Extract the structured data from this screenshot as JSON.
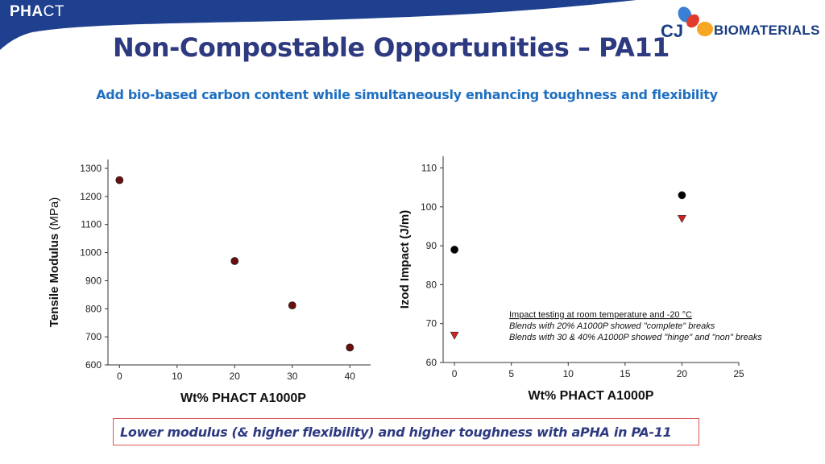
{
  "header": {
    "brand_bold": "PHA",
    "brand_thin": "CT",
    "title": "Non-Compostable Opportunities – PA11",
    "subtitle": "Add bio-based carbon content while simultaneously enhancing toughness and flexibility",
    "logo_prefix": "CJ",
    "logo_text": "BIOMATERIALS"
  },
  "colors": {
    "banner": "#1f3f8f",
    "title": "#2e3a80",
    "subtitle": "#1f6fc1",
    "marker_dark_red": "#6b0e0e",
    "marker_black": "#000000",
    "marker_red": "#d42020",
    "callout_border": "#e05555"
  },
  "chart_data": [
    {
      "type": "scatter",
      "xlabel": "Wt% PHACT A1000P",
      "ylabel_bold": "Tensile Modulus",
      "ylabel_unit": "(MPa)",
      "xticks": [
        0,
        10,
        20,
        30,
        40
      ],
      "yticks": [
        600,
        700,
        800,
        900,
        1000,
        1100,
        1200,
        1300
      ],
      "xlim": [
        -2,
        45
      ],
      "ylim": [
        600,
        1300
      ],
      "grid": false,
      "series": [
        {
          "marker": "circle",
          "color": "#6b0e0e",
          "points": [
            [
              0,
              1258
            ],
            [
              20,
              970
            ],
            [
              30,
              812
            ],
            [
              40,
              662
            ]
          ]
        }
      ]
    },
    {
      "type": "scatter",
      "xlabel": "Wt% PHACT A1000P",
      "ylabel": "Izod Impact (J/m)",
      "xticks": [
        0,
        5,
        10,
        15,
        20,
        25
      ],
      "yticks": [
        60,
        70,
        80,
        90,
        100,
        110
      ],
      "xlim": [
        -1,
        25
      ],
      "ylim": [
        60,
        113
      ],
      "grid": false,
      "series": [
        {
          "marker": "circle",
          "color": "#000000",
          "points": [
            [
              0,
              89
            ],
            [
              20,
              103
            ]
          ]
        },
        {
          "marker": "triangle-down",
          "color": "#d42020",
          "points": [
            [
              0,
              67
            ],
            [
              20,
              97
            ]
          ]
        }
      ],
      "annotations": [
        "Impact testing at room temperature and -20 °C",
        "Blends with 20% A1000P showed \"complete\" breaks",
        "Blends with 30 & 40% A1000P showed \"hinge\" and \"non\" breaks"
      ]
    }
  ],
  "callout": {
    "text": "Lower modulus (& higher flexibility) and higher toughness with aPHA in PA-11"
  }
}
